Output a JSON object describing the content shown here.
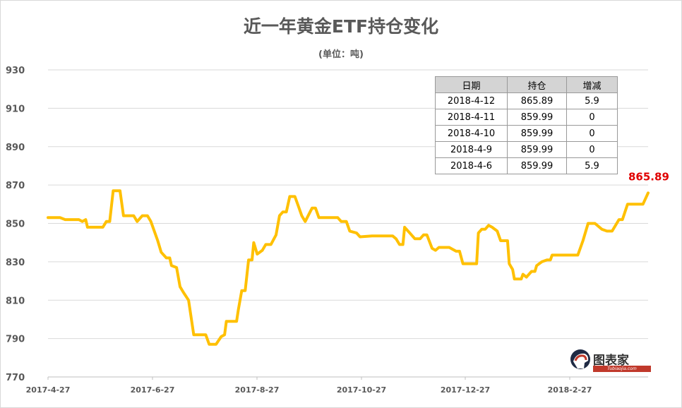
{
  "chart_data": {
    "type": "line",
    "title": "近一年黄金ETF持仓变化",
    "subtitle": "(单位：吨)",
    "xlabel": "",
    "ylabel": "",
    "ylim": [
      770,
      930
    ],
    "yticks": [
      "930",
      "910",
      "890",
      "870",
      "850",
      "830",
      "810",
      "790",
      "770"
    ],
    "xtick_labels": [
      "2017-4-27",
      "2017-6-27",
      "2017-8-27",
      "2017-10-27",
      "2017-12-27",
      "2018-2-27"
    ],
    "x_range": [
      "2017-04-27",
      "2018-04-12"
    ],
    "grid": "horizontal",
    "line_color": "#FFC000",
    "series": [
      {
        "points": [
          [
            "2017-04-27",
            853.0
          ],
          [
            "2017-05-04",
            853.0
          ],
          [
            "2017-05-07",
            852.0
          ],
          [
            "2017-05-15",
            852.0
          ],
          [
            "2017-05-17",
            851.0
          ],
          [
            "2017-05-19",
            852.0
          ],
          [
            "2017-05-20",
            848.0
          ],
          [
            "2017-05-29",
            848.0
          ],
          [
            "2017-05-31",
            851.0
          ],
          [
            "2017-06-02",
            851.0
          ],
          [
            "2017-06-04",
            867.0
          ],
          [
            "2017-06-08",
            867.0
          ],
          [
            "2017-06-10",
            854.0
          ],
          [
            "2017-06-16",
            854.0
          ],
          [
            "2017-06-18",
            851.0
          ],
          [
            "2017-06-21",
            854.0
          ],
          [
            "2017-06-24",
            854.0
          ],
          [
            "2017-06-26",
            851.0
          ],
          [
            "2017-06-30",
            841.0
          ],
          [
            "2017-07-02",
            835.0
          ],
          [
            "2017-07-05",
            832.0
          ],
          [
            "2017-07-07",
            832.0
          ],
          [
            "2017-07-08",
            828.0
          ],
          [
            "2017-07-11",
            827.0
          ],
          [
            "2017-07-13",
            817.0
          ],
          [
            "2017-07-15",
            814.0
          ],
          [
            "2017-07-18",
            810.0
          ],
          [
            "2017-07-21",
            792.0
          ],
          [
            "2017-07-28",
            792.0
          ],
          [
            "2017-07-30",
            787.0
          ],
          [
            "2017-08-03",
            787.0
          ],
          [
            "2017-08-06",
            791.0
          ],
          [
            "2017-08-08",
            792.0
          ],
          [
            "2017-08-09",
            799.0
          ],
          [
            "2017-08-15",
            799.0
          ],
          [
            "2017-08-16",
            805.0
          ],
          [
            "2017-08-18",
            815.0
          ],
          [
            "2017-08-20",
            815.0
          ],
          [
            "2017-08-22",
            831.0
          ],
          [
            "2017-08-24",
            831.0
          ],
          [
            "2017-08-25",
            840.0
          ],
          [
            "2017-08-27",
            834.0
          ],
          [
            "2017-08-30",
            836.0
          ],
          [
            "2017-09-01",
            839.0
          ],
          [
            "2017-09-04",
            839.0
          ],
          [
            "2017-09-07",
            844.0
          ],
          [
            "2017-09-09",
            854.0
          ],
          [
            "2017-09-11",
            856.0
          ],
          [
            "2017-09-13",
            856.0
          ],
          [
            "2017-09-15",
            864.0
          ],
          [
            "2017-09-18",
            864.0
          ],
          [
            "2017-09-20",
            859.0
          ],
          [
            "2017-09-22",
            854.0
          ],
          [
            "2017-09-24",
            851.0
          ],
          [
            "2017-09-28",
            858.0
          ],
          [
            "2017-09-30",
            858.0
          ],
          [
            "2017-10-02",
            853.0
          ],
          [
            "2017-10-13",
            853.0
          ],
          [
            "2017-10-15",
            851.0
          ],
          [
            "2017-10-18",
            851.0
          ],
          [
            "2017-10-20",
            846.0
          ],
          [
            "2017-10-24",
            845.0
          ],
          [
            "2017-10-26",
            843.0
          ],
          [
            "2017-11-02",
            843.5
          ],
          [
            "2017-11-14",
            843.5
          ],
          [
            "2017-11-16",
            842.0
          ],
          [
            "2017-11-18",
            839.0
          ],
          [
            "2017-11-20",
            839.0
          ],
          [
            "2017-11-21",
            848.0
          ],
          [
            "2017-11-24",
            845.0
          ],
          [
            "2017-11-27",
            842.0
          ],
          [
            "2017-11-30",
            842.0
          ],
          [
            "2017-12-02",
            844.0
          ],
          [
            "2017-12-04",
            844.0
          ],
          [
            "2017-12-07",
            837.0
          ],
          [
            "2017-12-09",
            836.0
          ],
          [
            "2017-12-11",
            837.5
          ],
          [
            "2017-12-17",
            837.5
          ],
          [
            "2017-12-21",
            835.5
          ],
          [
            "2017-12-23",
            835.5
          ],
          [
            "2017-12-25",
            829.0
          ],
          [
            "2018-01-02",
            829.0
          ],
          [
            "2018-01-03",
            845.0
          ],
          [
            "2018-01-05",
            847.0
          ],
          [
            "2018-01-07",
            847.0
          ],
          [
            "2018-01-09",
            849.0
          ],
          [
            "2018-01-11",
            848.0
          ],
          [
            "2018-01-14",
            846.0
          ],
          [
            "2018-01-16",
            841.0
          ],
          [
            "2018-01-20",
            841.0
          ],
          [
            "2018-01-21",
            829.0
          ],
          [
            "2018-01-23",
            826.0
          ],
          [
            "2018-01-24",
            821.0
          ],
          [
            "2018-01-28",
            821.0
          ],
          [
            "2018-01-29",
            823.5
          ],
          [
            "2018-01-31",
            822.0
          ],
          [
            "2018-02-03",
            825.0
          ],
          [
            "2018-02-05",
            825.0
          ],
          [
            "2018-02-06",
            828.0
          ],
          [
            "2018-02-09",
            830.0
          ],
          [
            "2018-02-12",
            831.0
          ],
          [
            "2018-02-14",
            831.0
          ],
          [
            "2018-02-15",
            833.5
          ],
          [
            "2018-02-21",
            833.5
          ],
          [
            "2018-02-23",
            833.5
          ],
          [
            "2018-03-02",
            833.5
          ],
          [
            "2018-03-05",
            841.0
          ],
          [
            "2018-03-08",
            850.0
          ],
          [
            "2018-03-12",
            850.0
          ],
          [
            "2018-03-16",
            847.0
          ],
          [
            "2018-03-19",
            846.0
          ],
          [
            "2018-03-22",
            846.0
          ],
          [
            "2018-03-26",
            852.0
          ],
          [
            "2018-03-28",
            852.0
          ],
          [
            "2018-03-31",
            860.0
          ],
          [
            "2018-04-09",
            860.0
          ],
          [
            "2018-04-12",
            865.89
          ]
        ]
      }
    ],
    "last_value_label": "865.89"
  },
  "table": {
    "headers": [
      "日期",
      "持仓",
      "增减"
    ],
    "rows": [
      [
        "2018-4-12",
        "865.89",
        "5.9"
      ],
      [
        "2018-4-11",
        "859.99",
        "0"
      ],
      [
        "2018-4-10",
        "859.99",
        "0"
      ],
      [
        "2018-4-9",
        "859.99",
        "0"
      ],
      [
        "2018-4-6",
        "859.99",
        "5.9"
      ]
    ]
  },
  "logo": {
    "brand": "图表家",
    "sub": "Tubiaojia.com",
    "icon": "head-silhouette-icon"
  }
}
